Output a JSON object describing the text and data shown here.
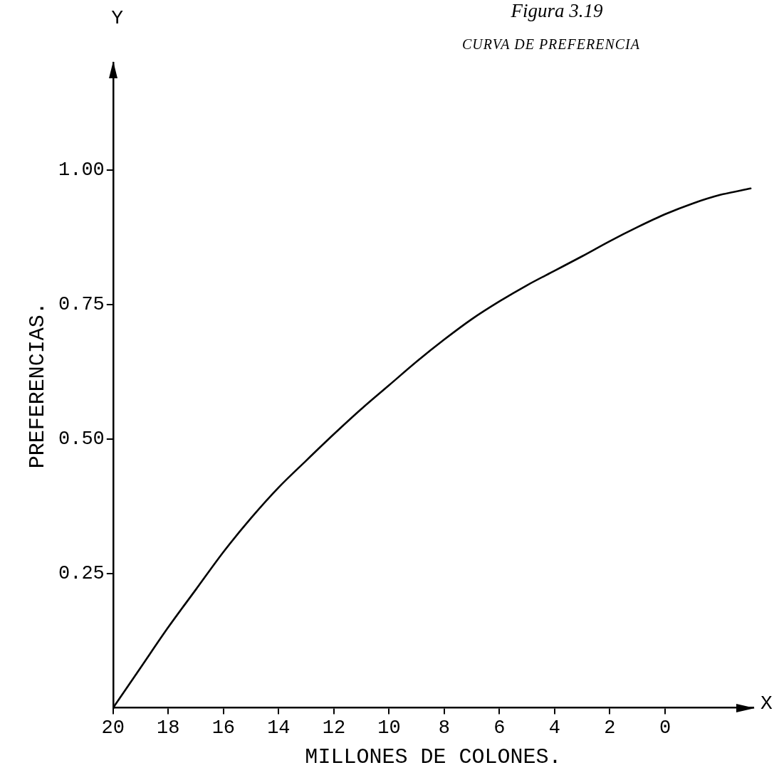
{
  "chart_data": {
    "type": "line",
    "title": "Figura 3.19",
    "subtitle": "CURVA DE PREFERENCIA",
    "xlabel": "MILLONES DE COLONES.",
    "ylabel": "PREFERENCIAS.",
    "annotations": [
      "Y",
      "X"
    ],
    "x": [
      20,
      19,
      18,
      17,
      16,
      15,
      14,
      13,
      12,
      11,
      10,
      9,
      8,
      7,
      6,
      5,
      4,
      3,
      2,
      1,
      0,
      -1,
      -2,
      -3.1
    ],
    "series": [
      {
        "color": "#000000",
        "values": [
          0,
          0.075,
          0.15,
          0.22,
          0.29,
          0.353,
          0.41,
          0.46,
          0.509,
          0.556,
          0.6,
          0.644,
          0.685,
          0.723,
          0.756,
          0.786,
          0.813,
          0.84,
          0.868,
          0.894,
          0.918,
          0.938,
          0.954,
          0.966
        ]
      }
    ],
    "xlim": [
      20,
      -3.2
    ],
    "xticks": [
      20,
      18,
      16,
      14,
      12,
      10,
      8,
      6,
      4,
      2,
      0
    ],
    "ylim": [
      0,
      1.2
    ],
    "yticks": [
      {
        "value": 0.25,
        "label": "0.25"
      },
      {
        "value": 0.5,
        "label": "0.50"
      },
      {
        "value": 0.75,
        "label": "0.75"
      },
      {
        "value": 1,
        "label": "1.00"
      }
    ],
    "marker": "none",
    "line_style": "solid"
  }
}
